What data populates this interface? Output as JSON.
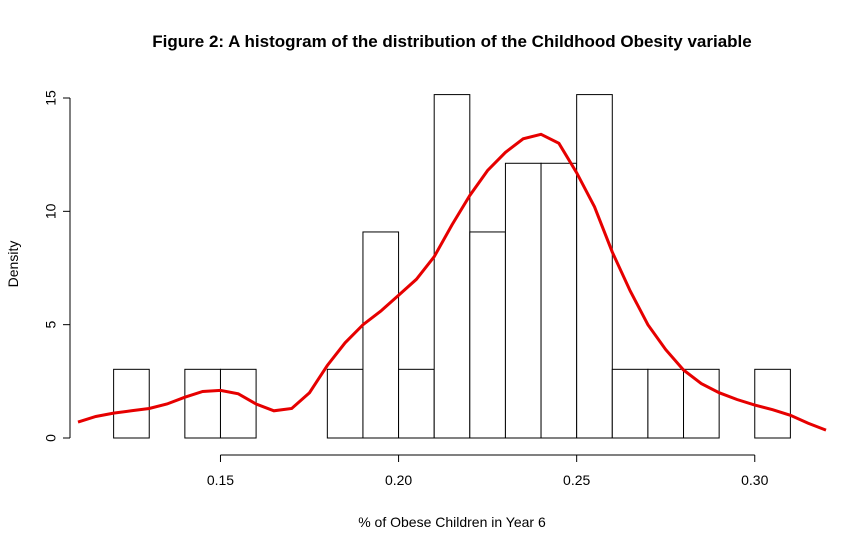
{
  "chart_data": {
    "type": "bar",
    "title": "Figure 2: A histogram of the distribution of the Childhood Obesity variable",
    "xlabel": "% of Obese Children in Year 6",
    "ylabel": "Density",
    "xlim": [
      0.11,
      0.32
    ],
    "ylim": [
      0,
      15
    ],
    "x_ticks": [
      {
        "value": 0.15,
        "label": "0.15"
      },
      {
        "value": 0.2,
        "label": "0.20"
      },
      {
        "value": 0.25,
        "label": "0.25"
      },
      {
        "value": 0.3,
        "label": "0.30"
      }
    ],
    "y_ticks": [
      {
        "value": 0,
        "label": "0"
      },
      {
        "value": 5,
        "label": "5"
      },
      {
        "value": 10,
        "label": "10"
      },
      {
        "value": 15,
        "label": "15"
      }
    ],
    "bins": [
      {
        "x0": 0.12,
        "x1": 0.13,
        "density": 3.03
      },
      {
        "x0": 0.13,
        "x1": 0.14,
        "density": 0
      },
      {
        "x0": 0.14,
        "x1": 0.15,
        "density": 3.03
      },
      {
        "x0": 0.15,
        "x1": 0.16,
        "density": 3.03
      },
      {
        "x0": 0.16,
        "x1": 0.17,
        "density": 0
      },
      {
        "x0": 0.17,
        "x1": 0.18,
        "density": 0
      },
      {
        "x0": 0.18,
        "x1": 0.19,
        "density": 3.03
      },
      {
        "x0": 0.19,
        "x1": 0.2,
        "density": 9.09
      },
      {
        "x0": 0.2,
        "x1": 0.21,
        "density": 3.03
      },
      {
        "x0": 0.21,
        "x1": 0.22,
        "density": 15.15
      },
      {
        "x0": 0.22,
        "x1": 0.23,
        "density": 9.09
      },
      {
        "x0": 0.23,
        "x1": 0.24,
        "density": 12.12
      },
      {
        "x0": 0.24,
        "x1": 0.25,
        "density": 12.12
      },
      {
        "x0": 0.25,
        "x1": 0.26,
        "density": 15.15
      },
      {
        "x0": 0.26,
        "x1": 0.27,
        "density": 3.03
      },
      {
        "x0": 0.27,
        "x1": 0.28,
        "density": 3.03
      },
      {
        "x0": 0.28,
        "x1": 0.29,
        "density": 3.03
      },
      {
        "x0": 0.29,
        "x1": 0.3,
        "density": 0
      },
      {
        "x0": 0.3,
        "x1": 0.31,
        "density": 3.03
      }
    ],
    "density_curve": {
      "color": "#e60000",
      "points": [
        [
          0.11,
          0.7
        ],
        [
          0.115,
          0.95
        ],
        [
          0.12,
          1.1
        ],
        [
          0.125,
          1.2
        ],
        [
          0.13,
          1.3
        ],
        [
          0.135,
          1.5
        ],
        [
          0.14,
          1.8
        ],
        [
          0.145,
          2.05
        ],
        [
          0.15,
          2.1
        ],
        [
          0.155,
          1.95
        ],
        [
          0.16,
          1.5
        ],
        [
          0.165,
          1.2
        ],
        [
          0.17,
          1.3
        ],
        [
          0.175,
          2.0
        ],
        [
          0.18,
          3.2
        ],
        [
          0.185,
          4.2
        ],
        [
          0.19,
          5.0
        ],
        [
          0.195,
          5.6
        ],
        [
          0.2,
          6.3
        ],
        [
          0.205,
          7.0
        ],
        [
          0.21,
          8.0
        ],
        [
          0.215,
          9.4
        ],
        [
          0.22,
          10.7
        ],
        [
          0.225,
          11.8
        ],
        [
          0.23,
          12.6
        ],
        [
          0.235,
          13.2
        ],
        [
          0.24,
          13.4
        ],
        [
          0.245,
          13.0
        ],
        [
          0.25,
          11.7
        ],
        [
          0.255,
          10.2
        ],
        [
          0.26,
          8.2
        ],
        [
          0.265,
          6.5
        ],
        [
          0.27,
          5.0
        ],
        [
          0.275,
          3.9
        ],
        [
          0.28,
          3.0
        ],
        [
          0.285,
          2.4
        ],
        [
          0.29,
          2.0
        ],
        [
          0.295,
          1.7
        ],
        [
          0.3,
          1.45
        ],
        [
          0.305,
          1.25
        ],
        [
          0.31,
          1.0
        ],
        [
          0.315,
          0.65
        ],
        [
          0.32,
          0.35
        ]
      ]
    }
  }
}
